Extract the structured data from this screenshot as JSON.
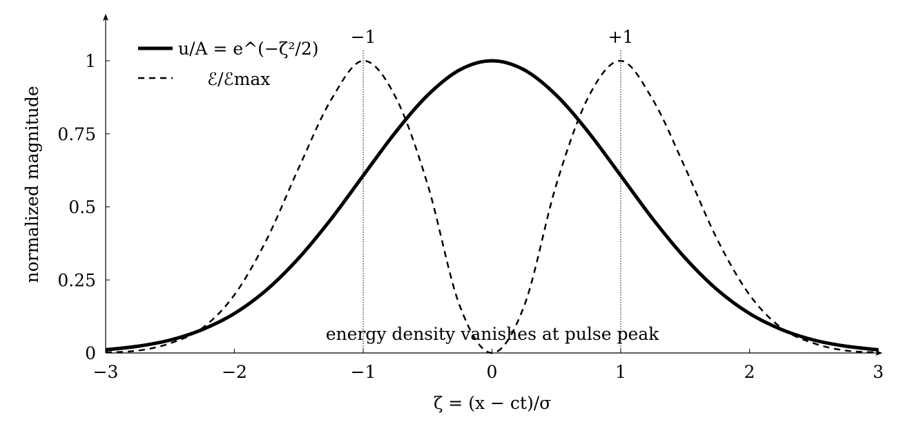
{
  "chart_data": {
    "type": "line",
    "title": "",
    "xlabel": "ζ = (x − ct)/σ",
    "ylabel": "normalized magnitude",
    "xlim": [
      -3,
      3
    ],
    "ylim": [
      0,
      1.13
    ],
    "xticks": [
      -3,
      -2,
      -1,
      0,
      1,
      2,
      3
    ],
    "xtick_labels": [
      "−3",
      "−2",
      "−1",
      "0",
      "1",
      "2",
      "3"
    ],
    "yticks": [
      0,
      0.25,
      0.5,
      0.75,
      1
    ],
    "ytick_labels": [
      "0",
      "0.25",
      "0.5",
      "0.75",
      "1"
    ],
    "grid": false,
    "legend_position": "top-left",
    "series": [
      {
        "name": "u/A = e^(−ζ²/2)",
        "style": "solid",
        "color": "#000000",
        "x": [
          -3,
          -2.75,
          -2.5,
          -2.25,
          -2,
          -1.75,
          -1.5,
          -1.25,
          -1,
          -0.75,
          -0.5,
          -0.25,
          0,
          0.25,
          0.5,
          0.75,
          1,
          1.25,
          1.5,
          1.75,
          2,
          2.25,
          2.5,
          2.75,
          3
        ],
        "y": [
          0.011,
          0.023,
          0.044,
          0.08,
          0.135,
          0.216,
          0.325,
          0.458,
          0.607,
          0.755,
          0.882,
          0.969,
          1.0,
          0.969,
          0.882,
          0.755,
          0.607,
          0.458,
          0.325,
          0.216,
          0.135,
          0.08,
          0.044,
          0.023,
          0.011
        ]
      },
      {
        "name": "ℰ/ℰmax",
        "style": "dashed",
        "color": "#000000",
        "x": [
          -3,
          -2.75,
          -2.5,
          -2.25,
          -2,
          -1.75,
          -1.5,
          -1.25,
          -1,
          -0.75,
          -0.5,
          -0.25,
          0,
          0.25,
          0.5,
          0.75,
          1,
          1.25,
          1.5,
          1.75,
          2,
          2.25,
          2.5,
          2.75,
          3
        ],
        "y": [
          0.002,
          0.008,
          0.033,
          0.085,
          0.199,
          0.388,
          0.634,
          0.866,
          1.0,
          0.877,
          0.577,
          0.161,
          0.0,
          0.161,
          0.577,
          0.877,
          1.0,
          0.866,
          0.634,
          0.388,
          0.199,
          0.085,
          0.033,
          0.008,
          0.002
        ]
      }
    ],
    "markers": [
      {
        "x": -1,
        "label": "−1"
      },
      {
        "x": 1,
        "label": "+1"
      }
    ],
    "annotations": [
      {
        "x": 0,
        "y": 0.06,
        "text": "energy density vanishes at pulse peak"
      }
    ]
  }
}
